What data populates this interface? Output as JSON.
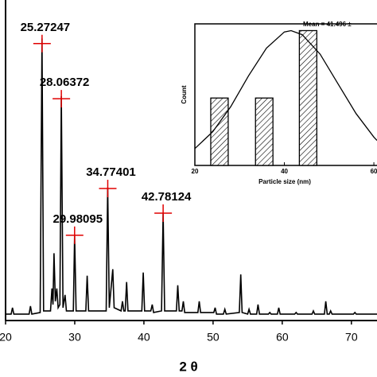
{
  "chart_data": [
    {
      "type": "line",
      "color": "#000000",
      "xlabel": "2 θ",
      "xlim": [
        20,
        73.7
      ],
      "ylim": [
        0,
        100
      ],
      "xticks": [
        20,
        30,
        40,
        50,
        60,
        70
      ],
      "x": [
        20,
        20.8,
        21.0,
        21.2,
        23.4,
        23.6,
        23.8,
        25.0,
        25.27,
        25.5,
        26.5,
        26.7,
        26.85,
        27.0,
        27.2,
        27.4,
        27.6,
        27.85,
        28.06,
        28.3,
        28.6,
        28.8,
        29.8,
        29.98,
        30.2,
        31.6,
        31.8,
        32.0,
        34.55,
        34.77,
        35.0,
        35.5,
        35.7,
        36.7,
        36.9,
        37.1,
        37.3,
        37.5,
        37.7,
        39.7,
        39.9,
        40.1,
        41.0,
        41.2,
        41.4,
        42.55,
        42.78,
        43.0,
        44.7,
        44.9,
        45.1,
        45.5,
        45.7,
        45.9,
        47.8,
        48.0,
        48.2,
        50.1,
        50.3,
        50.5,
        51.5,
        51.7,
        51.9,
        53.8,
        54.0,
        54.2,
        55.0,
        55.2,
        55.4,
        56.3,
        56.5,
        56.7,
        58.0,
        58.2,
        58.4,
        59.3,
        59.5,
        59.7,
        61.8,
        62.0,
        62.2,
        64.3,
        64.5,
        64.7,
        66.1,
        66.3,
        66.5,
        66.8,
        67.0,
        67.2,
        70.3,
        70.5,
        70.7,
        72.3,
        72.5,
        72.7,
        73.7
      ],
      "values": [
        2,
        2,
        4,
        2,
        2,
        4.5,
        2,
        2.5,
        88,
        3,
        3,
        10,
        5,
        21,
        6,
        10,
        4,
        5,
        70,
        4,
        8,
        3,
        3,
        26.6,
        3,
        3,
        14,
        3,
        3,
        41.5,
        4,
        16,
        4,
        3,
        6,
        3,
        3,
        12,
        3,
        3,
        15,
        3,
        3,
        5,
        2.5,
        3,
        33.5,
        3,
        3,
        11,
        3,
        3,
        6,
        2.5,
        2.5,
        6,
        2.5,
        2.5,
        4,
        2,
        2,
        3.5,
        2,
        2.5,
        14.4,
        2.5,
        2,
        3.5,
        2,
        2,
        5,
        2,
        2,
        2.5,
        2,
        2,
        4,
        2,
        2,
        2.5,
        2,
        2,
        3,
        2,
        2,
        6,
        2,
        2,
        3,
        2,
        2,
        2.5,
        2,
        2,
        2,
        2,
        2
      ],
      "annotations": [
        {
          "label": "25.27247",
          "x": 25.27247,
          "y": 86.4
        },
        {
          "label": "28.06372",
          "x": 28.06372,
          "y": 69.2
        },
        {
          "label": "29.98095",
          "x": 29.98095,
          "y": 26.6
        },
        {
          "label": "34.77401",
          "x": 34.77401,
          "y": 41.2
        },
        {
          "label": "42.78124",
          "x": 42.78124,
          "y": 33.5
        }
      ],
      "marker_color": "#e00000"
    },
    {
      "type": "bar",
      "xlabel": "Particle size (nm)",
      "ylabel": "Count",
      "annotation": "Mean = 41.496 ±",
      "xlim": [
        20,
        60.7
      ],
      "ylim": [
        0,
        2.1
      ],
      "xticks": [
        20,
        40,
        60
      ],
      "x": [
        25.5,
        35.5,
        45.3
      ],
      "values": [
        1,
        1,
        2
      ],
      "bar_width": 3.9,
      "fit": {
        "x": [
          20,
          24,
          28,
          32,
          36,
          40,
          41.5,
          44,
          48,
          52,
          56,
          60,
          60.7
        ],
        "values": [
          0.25,
          0.5,
          0.87,
          1.33,
          1.74,
          1.98,
          2,
          1.94,
          1.65,
          1.21,
          0.77,
          0.42,
          0.37
        ]
      }
    }
  ]
}
